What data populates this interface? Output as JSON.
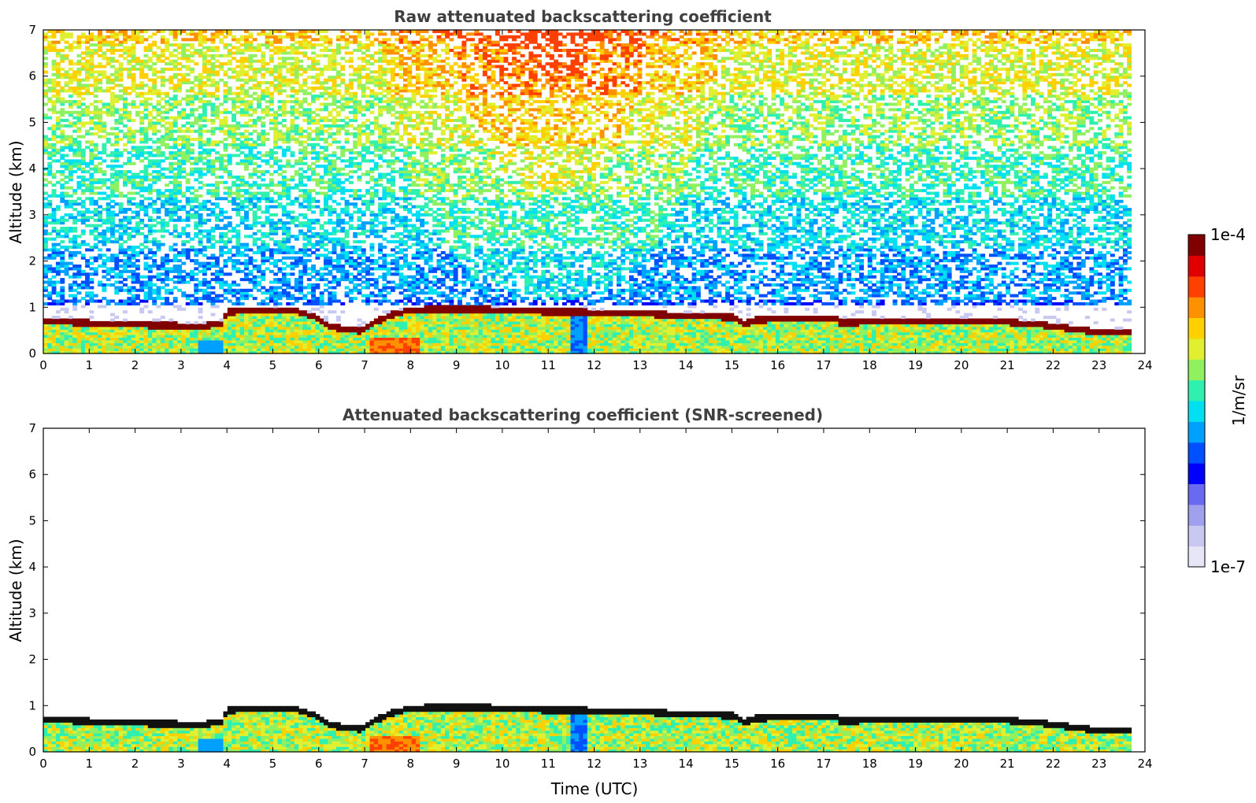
{
  "chart_data": [
    {
      "type": "heatmap",
      "title": "Raw attenuated backscattering coefficient",
      "xlabel": "",
      "ylabel": "Altitude (km)",
      "xlim": [
        0,
        24
      ],
      "ylim": [
        0,
        7
      ],
      "xticks": [
        "0",
        "1",
        "2",
        "3",
        "4",
        "5",
        "6",
        "7",
        "8",
        "9",
        "10",
        "11",
        "12",
        "13",
        "14",
        "15",
        "16",
        "17",
        "18",
        "19",
        "20",
        "21",
        "22",
        "23",
        "24"
      ],
      "yticks": [
        "0",
        "1",
        "2",
        "3",
        "4",
        "5",
        "6",
        "7"
      ],
      "data_end_time": 23.7,
      "layer_top_km": [
        [
          0,
          0.65
        ],
        [
          0.5,
          0.64
        ],
        [
          1,
          0.62
        ],
        [
          1.5,
          0.6
        ],
        [
          2,
          0.58
        ],
        [
          2.5,
          0.57
        ],
        [
          3,
          0.56
        ],
        [
          3.5,
          0.56
        ],
        [
          3.9,
          0.6
        ],
        [
          4.0,
          0.85
        ],
        [
          4.5,
          0.9
        ],
        [
          5,
          0.9
        ],
        [
          5.5,
          0.88
        ],
        [
          5.9,
          0.75
        ],
        [
          6.2,
          0.55
        ],
        [
          6.5,
          0.5
        ],
        [
          6.9,
          0.45
        ],
        [
          7.2,
          0.62
        ],
        [
          7.6,
          0.8
        ],
        [
          8,
          0.9
        ],
        [
          8.5,
          0.92
        ],
        [
          9,
          0.92
        ],
        [
          9.5,
          0.92
        ],
        [
          10,
          0.9
        ],
        [
          10.5,
          0.88
        ],
        [
          11,
          0.86
        ],
        [
          11.5,
          0.86
        ],
        [
          12,
          0.85
        ],
        [
          12.5,
          0.83
        ],
        [
          13,
          0.82
        ],
        [
          13.5,
          0.8
        ],
        [
          14,
          0.78
        ],
        [
          14.5,
          0.76
        ],
        [
          15,
          0.74
        ],
        [
          15.3,
          0.6
        ],
        [
          15.5,
          0.68
        ],
        [
          16,
          0.7
        ],
        [
          16.5,
          0.7
        ],
        [
          17,
          0.72
        ],
        [
          17.3,
          0.73
        ],
        [
          17.35,
          0.62
        ],
        [
          18,
          0.64
        ],
        [
          18.5,
          0.65
        ],
        [
          19,
          0.66
        ],
        [
          19.5,
          0.66
        ],
        [
          20,
          0.66
        ],
        [
          20.5,
          0.66
        ],
        [
          21,
          0.64
        ],
        [
          21.5,
          0.6
        ],
        [
          22,
          0.55
        ],
        [
          22.5,
          0.48
        ],
        [
          23,
          0.42
        ],
        [
          23.7,
          0.4
        ]
      ]
    },
    {
      "type": "heatmap",
      "title": "Attenuated backscattering coefficient (SNR-screened)",
      "xlabel": "Time (UTC)",
      "ylabel": "Altitude (km)",
      "xlim": [
        0,
        24
      ],
      "ylim": [
        0,
        7
      ],
      "xticks": [
        "0",
        "1",
        "2",
        "3",
        "4",
        "5",
        "6",
        "7",
        "8",
        "9",
        "10",
        "11",
        "12",
        "13",
        "14",
        "15",
        "16",
        "17",
        "18",
        "19",
        "20",
        "21",
        "22",
        "23",
        "24"
      ],
      "yticks": [
        "0",
        "1",
        "2",
        "3",
        "4",
        "5",
        "6",
        "7"
      ]
    }
  ],
  "colorbar": {
    "max_label": "1e-4",
    "min_label": "1e-7",
    "unit_label": "1/m/sr",
    "colors": [
      "#e6e6f7",
      "#c8c8f0",
      "#a0a0ee",
      "#6a6af0",
      "#0000ff",
      "#0050ff",
      "#00a0ff",
      "#00e0f0",
      "#30f0b0",
      "#90f060",
      "#e0f030",
      "#ffd000",
      "#ff9000",
      "#ff4000",
      "#e00000",
      "#800000"
    ]
  }
}
